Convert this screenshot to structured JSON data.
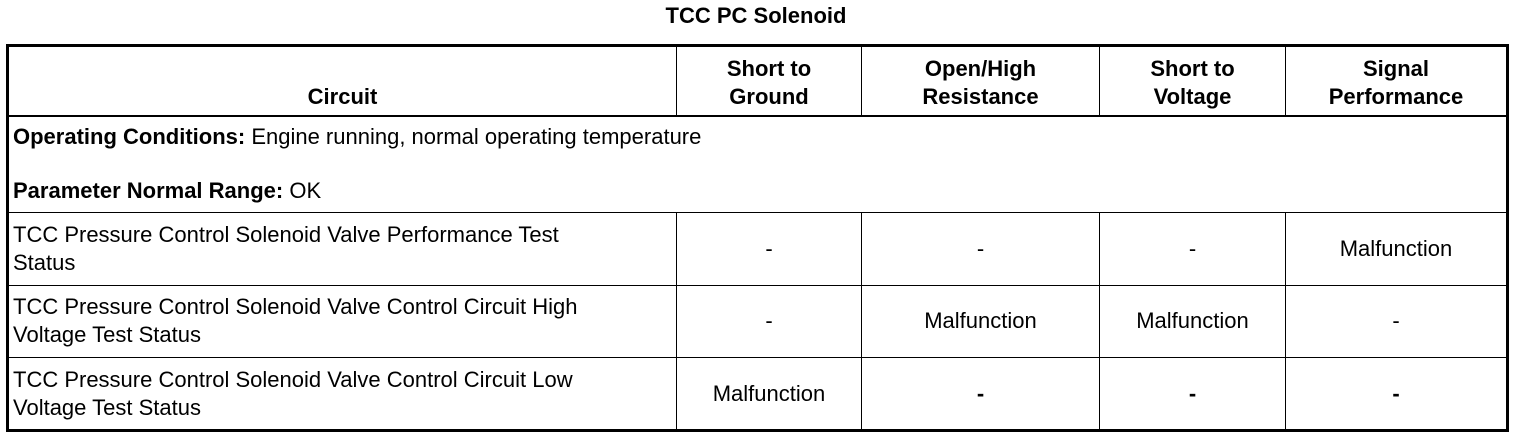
{
  "title": "TCC PC Solenoid",
  "header": {
    "circuit": "Circuit",
    "short_to_ground": [
      "Short to",
      "Ground"
    ],
    "open_high_resistance": [
      "Open/High",
      "Resistance"
    ],
    "short_to_voltage": [
      "Short to",
      "Voltage"
    ],
    "signal_performance": [
      "Signal",
      "Performance"
    ]
  },
  "conditions": {
    "operating_label": "Operating Conditions:",
    "operating_value": " Engine running, normal operating temperature",
    "range_label": "Parameter Normal Range:",
    "range_value": " OK"
  },
  "rows": [
    {
      "name": [
        "TCC Pressure Control Solenoid Valve Performance Test",
        "Status"
      ],
      "short_to_ground": "-",
      "open_high_resistance": "-",
      "short_to_voltage": "-",
      "signal_performance": "Malfunction"
    },
    {
      "name": [
        "TCC Pressure Control Solenoid Valve Control Circuit High",
        "Voltage Test Status"
      ],
      "short_to_ground": "-",
      "open_high_resistance": "Malfunction",
      "short_to_voltage": "Malfunction",
      "signal_performance": "-"
    },
    {
      "name": [
        "TCC Pressure Control Solenoid Valve Control Circuit Low",
        "Voltage Test Status"
      ],
      "short_to_ground": "Malfunction",
      "open_high_resistance": "-",
      "short_to_voltage": "-",
      "signal_performance": "-"
    }
  ]
}
